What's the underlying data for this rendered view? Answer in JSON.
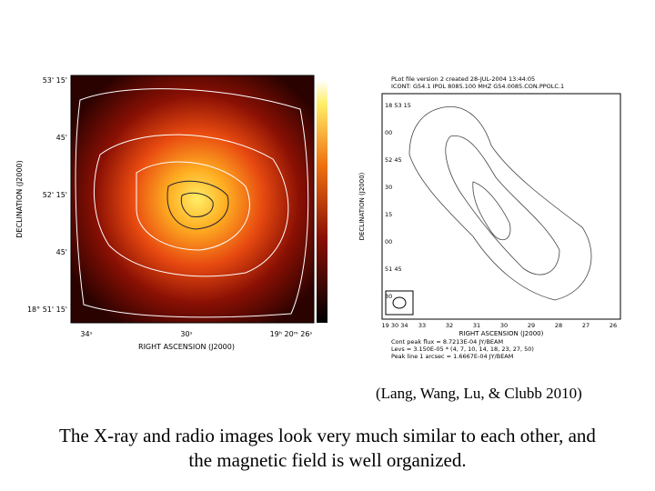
{
  "left_image": {
    "y_axis_label": "DECLINATION (J2000)",
    "x_axis_label": "RIGHT ASCENSION (J2000)",
    "y_ticks": [
      "53' 15'",
      "45'",
      "52' 15'",
      "45'",
      "18° 51' 15'"
    ],
    "x_ticks": [
      "34ˢ",
      "30ˢ",
      "19ʰ 20ᵐ 26ˢ"
    ]
  },
  "right_image": {
    "header": [
      "PLot file version 2  created 28-JUL-2004 13:44:05",
      "ICONT: G54.1  IPOL  8085.100 MHZ  G54.0085.CON.PPOLC.1"
    ],
    "y_axis_label": "DECLINATION (J2000)",
    "x_axis_label": "RIGHT ASCENSION (J2000)",
    "y_ticks": [
      "18 53 15",
      "00",
      "52 45",
      "30",
      "15",
      "00",
      "51 45",
      "30"
    ],
    "x_ticks": [
      "19 30 34",
      "33",
      "32",
      "31",
      "30",
      "29",
      "28",
      "27",
      "26"
    ],
    "footer": [
      "Cont peak flux = 8.7213E-04 JY/BEAM",
      "Levs = 3.150E-05 * (4, 7, 10, 14, 18, 23, 27, 50)",
      "Peak line 1 arcsec = 1.6667E-04 JY/BEAM"
    ]
  },
  "citation": "(Lang, Wang, Lu, & Clubb 2010)",
  "caption": [
    "The X-ray and radio images look very much similar to each other, and",
    "the magnetic field is well organized."
  ]
}
